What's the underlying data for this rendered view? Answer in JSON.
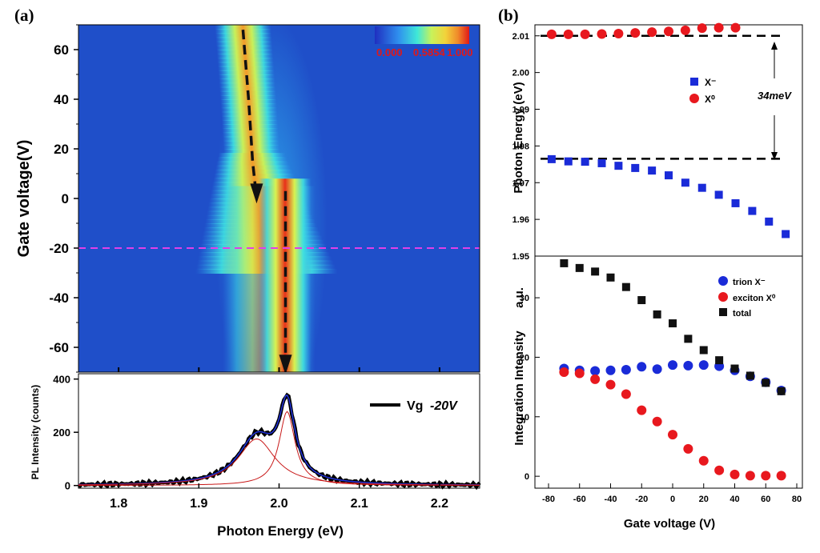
{
  "panels": {
    "a": "(a)",
    "b": "(b)"
  },
  "chart_data": [
    {
      "id": "heatmap",
      "type": "heatmap",
      "ylabel": "Gate voltage(V)",
      "xlim": [
        1.75,
        2.25
      ],
      "ylim": [
        -70,
        70
      ],
      "yticks": [
        "60",
        "40",
        "20",
        "0",
        "-20",
        "-40",
        "-60"
      ],
      "ytick_values": [
        60,
        40,
        20,
        0,
        -20,
        -40,
        -60
      ],
      "colorbar": {
        "labels": [
          "0.000",
          "0.5854",
          "1.000"
        ],
        "values": [
          0,
          0.5854,
          1
        ]
      },
      "colors": {
        "low": "#1f4fc9",
        "mid": "#30e0d8",
        "high": "#e8261a",
        "cut_line": "#e040e8"
      },
      "cut_line_y": -20,
      "trion_trace": {
        "x": [
          1.955,
          1.962,
          1.967,
          1.972
        ],
        "y": [
          68,
          40,
          15,
          0
        ]
      },
      "exciton_trace": {
        "x": [
          2.008,
          2.008
        ],
        "y": [
          3,
          -65
        ]
      }
    },
    {
      "id": "pl_spectrum",
      "type": "line",
      "xlabel": "Photon Energy (eV)",
      "ylabel": "PL Intensity (counts)",
      "xlim": [
        1.75,
        2.25
      ],
      "ylim": [
        -10,
        420
      ],
      "xticks": [
        "1.8",
        "1.9",
        "2.0",
        "2.1",
        "2.2"
      ],
      "xtick_values": [
        1.8,
        1.9,
        2.0,
        2.1,
        2.2
      ],
      "yticks": [
        "0",
        "200",
        "400"
      ],
      "ytick_values": [
        0,
        200,
        400
      ],
      "legend": {
        "label_prefix": "Vg",
        "label_value": "-20V"
      },
      "series": [
        {
          "name": "Vg -20V",
          "color": "#000000",
          "peaks": [
            {
              "center": 1.972,
              "height": 175,
              "width": 0.028
            },
            {
              "center": 2.01,
              "height": 278,
              "width": 0.012
            }
          ]
        }
      ]
    },
    {
      "id": "photon_energy",
      "type": "scatter",
      "ylabel": "Photon Energy  (eV)",
      "ylim": [
        1.95,
        2.013
      ],
      "xlim": [
        -80,
        80
      ],
      "yticks": [
        "2.01",
        "2.00",
        "1.99",
        "1.98",
        "1.97",
        "1.96",
        "1.95"
      ],
      "ytick_values": [
        2.01,
        2.0,
        1.99,
        1.98,
        1.97,
        1.96,
        1.95
      ],
      "legend": [
        "X⁻",
        "X⁰"
      ],
      "annotation": "34meV",
      "series": [
        {
          "name": "X⁻",
          "color": "#1a2bd8",
          "marker": "square",
          "x": [
            -70,
            -60,
            -50,
            -40,
            -30,
            -20,
            -10,
            0,
            10,
            20,
            30,
            40,
            50,
            60,
            70
          ],
          "y": [
            1.9764,
            1.9758,
            1.9757,
            1.9753,
            1.9746,
            1.974,
            1.9733,
            1.972,
            1.97,
            1.9686,
            1.9667,
            1.9644,
            1.9623,
            1.9594,
            1.956
          ]
        },
        {
          "name": "X⁰",
          "color": "#e8181e",
          "marker": "circle",
          "x": [
            -70,
            -60,
            -50,
            -40,
            -30,
            -20,
            -10,
            0,
            10,
            20,
            30,
            40
          ],
          "y": [
            2.0104,
            2.0104,
            2.0104,
            2.0105,
            2.0106,
            2.0108,
            2.011,
            2.0112,
            2.0115,
            2.0121,
            2.0122,
            2.0122
          ]
        }
      ],
      "dashed_levels": [
        2.01,
        1.9765
      ]
    },
    {
      "id": "integration_intensity",
      "type": "scatter",
      "xlabel": "Gate voltage (V)",
      "ylabel": "Integration Intensity",
      "ylabel_unit": "a.u.",
      "xlim": [
        -80,
        80
      ],
      "ylim": [
        -2,
        37
      ],
      "xticks": [
        "-80",
        "-60",
        "-40",
        "-20",
        "0",
        "20",
        "40",
        "60",
        "80"
      ],
      "xtick_values": [
        -80,
        -60,
        -40,
        -20,
        0,
        20,
        40,
        60,
        80
      ],
      "yticks": [
        "30",
        "20",
        "10",
        "0"
      ],
      "ytick_values": [
        30,
        20,
        10,
        0
      ],
      "legend": [
        "trion X⁻",
        "exciton X⁰",
        "total"
      ],
      "series": [
        {
          "name": "trion X⁻",
          "color": "#1a2bd8",
          "marker": "circle",
          "x": [
            -70,
            -60,
            -50,
            -40,
            -30,
            -20,
            -10,
            0,
            10,
            20,
            30,
            40,
            50,
            60,
            70
          ],
          "y": [
            18.1,
            17.8,
            17.7,
            17.8,
            17.9,
            18.4,
            18.0,
            18.7,
            18.6,
            18.7,
            18.5,
            17.8,
            16.8,
            15.8,
            14.4
          ]
        },
        {
          "name": "exciton X⁰",
          "color": "#e8181e",
          "marker": "circle",
          "x": [
            -70,
            -60,
            -50,
            -40,
            -30,
            -20,
            -10,
            0,
            10,
            20,
            30,
            40,
            50,
            60,
            70
          ],
          "y": [
            17.5,
            17.3,
            16.3,
            15.4,
            13.8,
            11.1,
            9.2,
            7.0,
            4.6,
            2.6,
            1.0,
            0.3,
            0.1,
            0.1,
            0.1
          ]
        },
        {
          "name": "total",
          "color": "#111111",
          "marker": "square",
          "x": [
            -70,
            -60,
            -50,
            -40,
            -30,
            -20,
            -10,
            0,
            10,
            20,
            30,
            40,
            50,
            60,
            70
          ],
          "y": [
            35.8,
            35.0,
            34.4,
            33.4,
            31.8,
            29.6,
            27.2,
            25.7,
            23.1,
            21.2,
            19.5,
            18.1,
            16.9,
            15.7,
            14.3
          ]
        }
      ]
    }
  ]
}
